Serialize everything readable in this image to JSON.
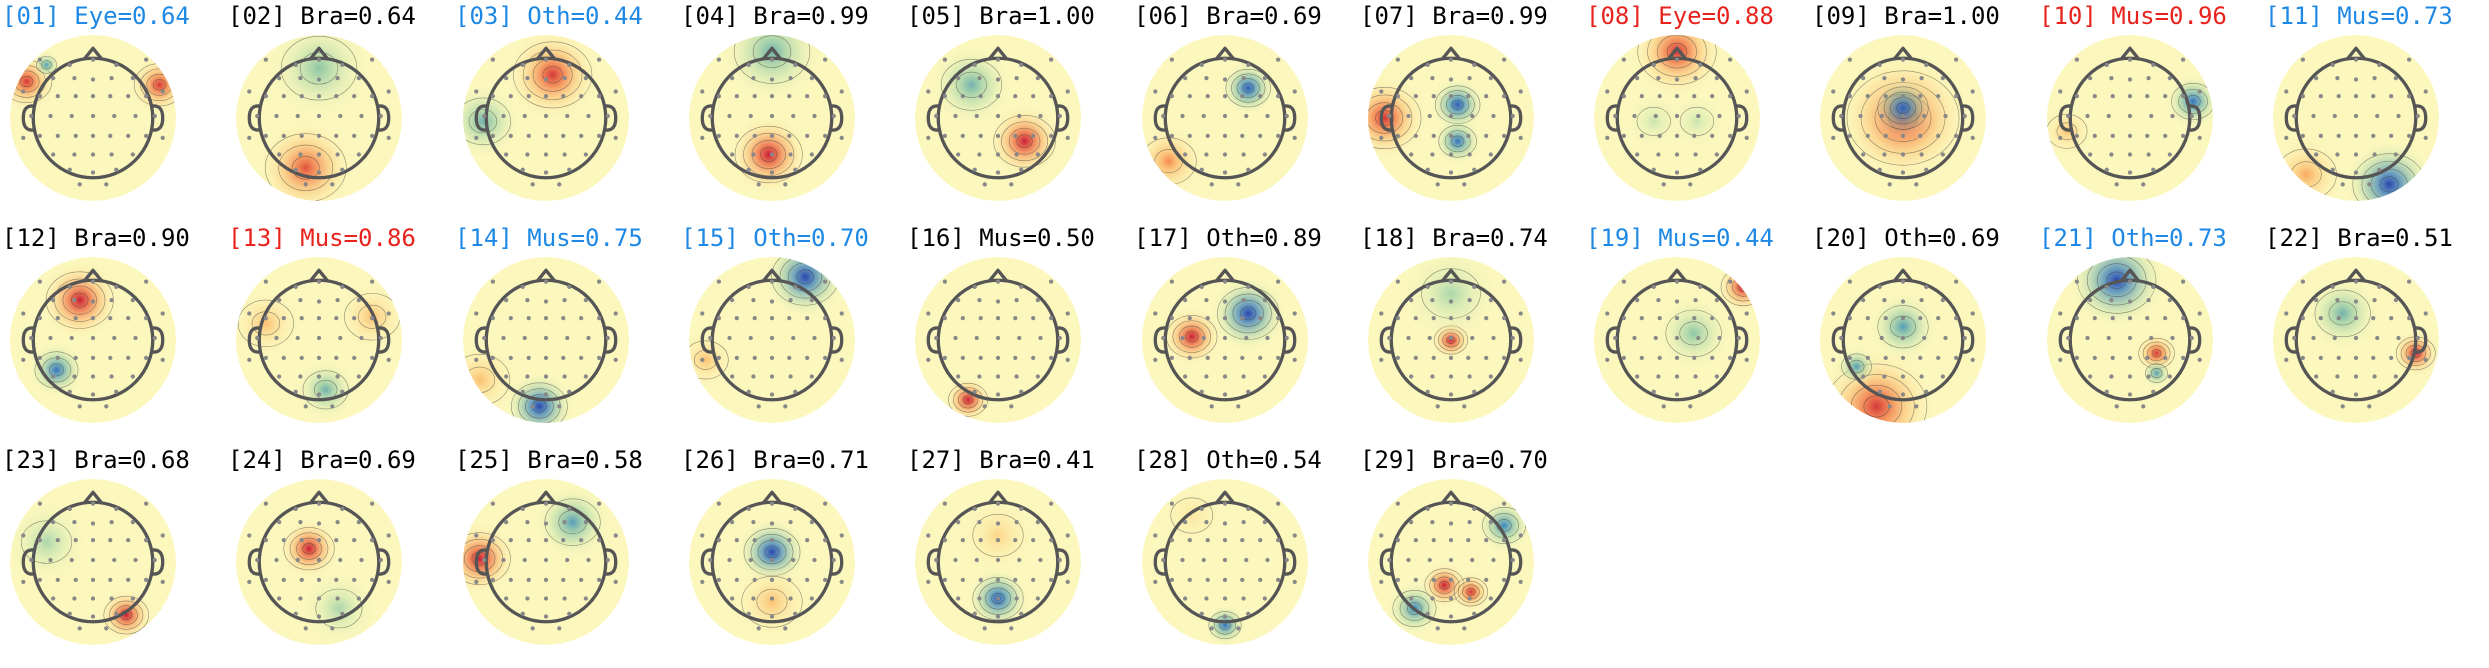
{
  "figure": {
    "colors": {
      "black": "#000000",
      "blue": "#1e88e5",
      "red": "#e8221c"
    },
    "components": [
      {
        "title": "[01] Eye=0.64",
        "color": "blue",
        "blobs": [
          {
            "v": 0.9
          },
          {
            "v": 0.9
          },
          {
            "v": -0.6
          }
        ]
      },
      {
        "title": "[02] Bra=0.64",
        "color": "black",
        "blobs": [
          {
            "v": 0.8
          },
          {
            "v": -0.4
          }
        ]
      },
      {
        "title": "[03] Oth=0.44",
        "color": "blue",
        "blobs": [
          {
            "v": 0.9
          },
          {
            "v": -0.5
          }
        ]
      },
      {
        "title": "[04] Bra=0.99",
        "color": "black",
        "blobs": [
          {
            "v": 1.0
          },
          {
            "v": -0.5
          }
        ]
      },
      {
        "title": "[05] Bra=1.00",
        "color": "black",
        "blobs": [
          {
            "v": 1.0
          },
          {
            "v": -0.5
          }
        ]
      },
      {
        "title": "[06] Bra=0.69",
        "color": "black",
        "blobs": [
          {
            "v": -0.9
          },
          {
            "v": 0.6
          }
        ]
      },
      {
        "title": "[07] Bra=0.99",
        "color": "black",
        "blobs": [
          {
            "v": 0.9
          },
          {
            "v": -0.9
          },
          {
            "v": -0.8
          }
        ]
      },
      {
        "title": "[08] Eye=0.88",
        "color": "red",
        "blobs": [
          {
            "v": 0.9
          },
          {
            "v": -0.2
          },
          {
            "v": -0.2
          }
        ]
      },
      {
        "title": "[09] Bra=1.00",
        "color": "black",
        "blobs": [
          {
            "v": 0.9
          },
          {
            "v": -0.9
          }
        ]
      },
      {
        "title": "[10] Mus=0.96",
        "color": "red",
        "blobs": [
          {
            "v": -0.8
          },
          {
            "v": 0.4
          }
        ]
      },
      {
        "title": "[11] Mus=0.73",
        "color": "blue",
        "blobs": [
          {
            "v": -1.0
          },
          {
            "v": 0.5
          }
        ]
      },
      {
        "title": "[12] Bra=0.90",
        "color": "black",
        "blobs": [
          {
            "v": 1.0
          },
          {
            "v": -0.8
          }
        ]
      },
      {
        "title": "[13] Mus=0.86",
        "color": "red",
        "blobs": [
          {
            "v": 0.4
          },
          {
            "v": 0.4
          },
          {
            "v": -0.5
          }
        ]
      },
      {
        "title": "[14] Mus=0.75",
        "color": "blue",
        "blobs": [
          {
            "v": -1.0
          },
          {
            "v": 0.4
          }
        ]
      },
      {
        "title": "[15] Oth=0.70",
        "color": "blue",
        "blobs": [
          {
            "v": -1.0
          },
          {
            "v": 0.4
          }
        ]
      },
      {
        "title": "[16] Mus=0.50",
        "color": "black",
        "blobs": [
          {
            "v": 1.0
          }
        ]
      },
      {
        "title": "[17] Oth=0.89",
        "color": "black",
        "blobs": [
          {
            "v": -1.0
          },
          {
            "v": 1.0
          }
        ]
      },
      {
        "title": "[18] Bra=0.74",
        "color": "black",
        "blobs": [
          {
            "v": 1.0
          },
          {
            "v": -0.3
          }
        ]
      },
      {
        "title": "[19] Mus=0.44",
        "color": "blue",
        "blobs": [
          {
            "v": 1.0
          },
          {
            "v": -0.4
          }
        ]
      },
      {
        "title": "[20] Oth=0.69",
        "color": "black",
        "blobs": [
          {
            "v": 0.9
          },
          {
            "v": -0.6
          },
          {
            "v": -0.6
          }
        ]
      },
      {
        "title": "[21] Oth=0.73",
        "color": "blue",
        "blobs": [
          {
            "v": -1.0
          },
          {
            "v": 0.9
          },
          {
            "v": -0.6
          }
        ]
      },
      {
        "title": "[22] Bra=0.51",
        "color": "black",
        "blobs": [
          {
            "v": 1.0
          },
          {
            "v": -0.5
          }
        ]
      },
      {
        "title": "[23] Bra=0.68",
        "color": "black",
        "blobs": [
          {
            "v": 1.0
          },
          {
            "v": -0.3
          }
        ]
      },
      {
        "title": "[24] Bra=0.69",
        "color": "black",
        "blobs": [
          {
            "v": 1.0
          },
          {
            "v": -0.3
          }
        ]
      },
      {
        "title": "[25] Bra=0.58",
        "color": "black",
        "blobs": [
          {
            "v": 1.0
          },
          {
            "v": -0.6
          }
        ]
      },
      {
        "title": "[26] Bra=0.71",
        "color": "black",
        "blobs": [
          {
            "v": -1.0
          },
          {
            "v": 0.4
          }
        ]
      },
      {
        "title": "[27] Bra=0.41",
        "color": "black",
        "blobs": [
          {
            "v": -0.9
          },
          {
            "v": 0.3
          }
        ]
      },
      {
        "title": "[28] Oth=0.54",
        "color": "black",
        "blobs": [
          {
            "v": -0.8
          },
          {
            "v": 0.2
          }
        ]
      },
      {
        "title": "[29] Bra=0.70",
        "color": "black",
        "blobs": [
          {
            "v": 1.0
          },
          {
            "v": 0.9
          },
          {
            "v": -0.7
          },
          {
            "v": -0.7
          }
        ]
      }
    ]
  }
}
